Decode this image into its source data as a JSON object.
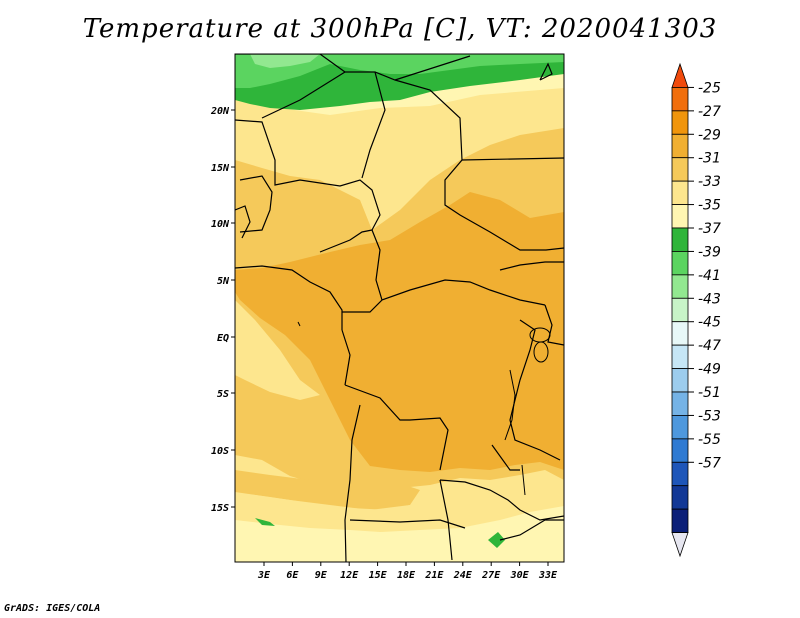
{
  "title": "Temperature at 300hPa [C], VT: 2020041303",
  "credit": "GrADS: IGES/COLA",
  "lat_labels": [
    "20N",
    "15N",
    "10N",
    "5N",
    "EQ",
    "5S",
    "10S",
    "15S"
  ],
  "lon_labels": [
    "3E",
    "6E",
    "9E",
    "12E",
    "15E",
    "18E",
    "21E",
    "24E",
    "27E",
    "30E",
    "33E"
  ],
  "colorbar": {
    "labels": [
      "-25",
      "-27",
      "-29",
      "-31",
      "-33",
      "-35",
      "-37",
      "-39",
      "-41",
      "-43",
      "-45",
      "-47",
      "-49",
      "-51",
      "-53",
      "-55",
      "-57"
    ],
    "colors": [
      "#f04a0c",
      "#f06e0c",
      "#f0950c",
      "#f0af32",
      "#f5c95a",
      "#fde68e",
      "#fff6b2",
      "#2fb53a",
      "#5bd460",
      "#92e890",
      "#c8f4c8",
      "#e8f8f8",
      "#c6e6f6",
      "#9ccced",
      "#75b3e6",
      "#4e98dd",
      "#2f7ad2",
      "#1e56b9",
      "#123896",
      "#0b1f78",
      "#e6e6f0"
    ]
  },
  "map_colors": {
    "c27": "#f0af32",
    "c29": "#f5c95a",
    "c31": "#fde68e",
    "c33": "#fff6b2",
    "c35": "#2fb53a",
    "c37": "#5bd460",
    "c39": "#92e890"
  }
}
